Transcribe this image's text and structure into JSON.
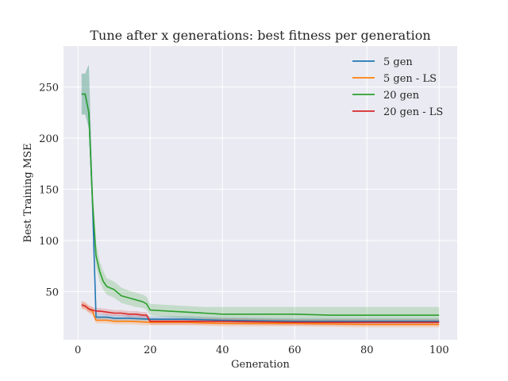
{
  "chart_data": {
    "type": "line",
    "title": "Tune after x generations: best fitness per generation",
    "xlabel": "Generation",
    "ylabel": "Best Training MSE",
    "xlim": [
      -4,
      105
    ],
    "ylim": [
      3,
      290
    ],
    "xticks": [
      0,
      20,
      40,
      60,
      80,
      100
    ],
    "yticks": [
      50,
      100,
      150,
      200,
      250
    ],
    "grid": true,
    "legend_position": "top-right",
    "series": [
      {
        "name": "5 gen",
        "color": "#1f77b4",
        "x": [
          1,
          2,
          3,
          4,
          5,
          6,
          8,
          10,
          14,
          20,
          30,
          40,
          60,
          80,
          100
        ],
        "y": [
          243,
          243,
          225,
          140,
          25,
          25,
          25,
          24,
          24,
          23,
          23,
          22,
          21,
          21,
          21
        ],
        "lower": [
          223,
          223,
          210,
          125,
          22,
          22,
          22,
          21,
          21,
          21,
          21,
          20,
          19,
          19,
          19
        ],
        "upper": [
          263,
          263,
          272,
          160,
          28,
          28,
          28,
          27,
          27,
          26,
          26,
          25,
          24,
          24,
          24
        ]
      },
      {
        "name": "5 gen - LS",
        "color": "#ff7f0e",
        "x": [
          1,
          2,
          3,
          4,
          5,
          6,
          8,
          10,
          14,
          20,
          30,
          40,
          60,
          80,
          100
        ],
        "y": [
          37,
          36,
          33,
          31,
          22,
          22,
          22,
          21,
          21,
          20,
          20,
          19,
          19,
          18,
          18
        ],
        "lower": [
          33,
          32,
          29,
          27,
          19,
          19,
          19,
          18,
          18,
          17,
          17,
          16,
          16,
          15,
          15
        ],
        "upper": [
          41,
          40,
          37,
          35,
          25,
          25,
          25,
          24,
          24,
          23,
          23,
          22,
          22,
          21,
          21
        ]
      },
      {
        "name": "20 gen",
        "color": "#2ca02c",
        "x": [
          1,
          2,
          3,
          4,
          5,
          6,
          7,
          8,
          10,
          12,
          14,
          16,
          18,
          19,
          20,
          25,
          30,
          35,
          40,
          50,
          60,
          70,
          80,
          90,
          100
        ],
        "y": [
          243,
          243,
          225,
          140,
          85,
          70,
          60,
          55,
          52,
          46,
          44,
          42,
          40,
          38,
          32,
          31,
          30,
          29,
          28,
          28,
          28,
          27,
          27,
          27,
          27
        ],
        "lower": [
          223,
          223,
          210,
          125,
          74,
          60,
          52,
          47,
          44,
          39,
          37,
          35,
          34,
          32,
          27,
          25,
          24,
          23,
          22,
          21,
          21,
          21,
          21,
          21,
          21
        ],
        "upper": [
          263,
          263,
          272,
          160,
          97,
          80,
          70,
          63,
          60,
          54,
          51,
          49,
          47,
          45,
          38,
          37,
          36,
          35,
          35,
          35,
          35,
          35,
          35,
          35,
          35
        ]
      },
      {
        "name": "20 gen - LS",
        "color": "#d62728",
        "x": [
          1,
          2,
          3,
          4,
          5,
          6,
          8,
          10,
          12,
          14,
          16,
          18,
          19,
          20,
          30,
          40,
          60,
          80,
          100
        ],
        "y": [
          37,
          36,
          33,
          32,
          31,
          31,
          30,
          29,
          29,
          28,
          28,
          27,
          27,
          21,
          21,
          21,
          20,
          20,
          20
        ],
        "lower": [
          34,
          33,
          30,
          29,
          28,
          28,
          27,
          26,
          26,
          25,
          25,
          24,
          24,
          18,
          18,
          18,
          17,
          17,
          17
        ],
        "upper": [
          40,
          39,
          36,
          35,
          34,
          34,
          33,
          32,
          32,
          31,
          31,
          30,
          30,
          24,
          24,
          24,
          23,
          23,
          23
        ]
      }
    ]
  }
}
